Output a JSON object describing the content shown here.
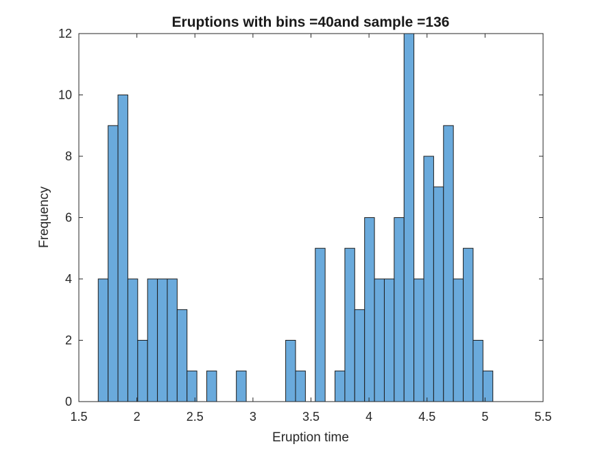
{
  "chart_data": {
    "type": "bar",
    "title": "Eruptions with bins =40and sample =136",
    "xlabel": "Eruption time",
    "ylabel": "Frequency",
    "xlim": [
      1.5,
      5.5
    ],
    "ylim": [
      0,
      12
    ],
    "xticks": [
      "1.5",
      "2",
      "2.5",
      "3",
      "3.5",
      "4",
      "4.5",
      "5",
      "5.5"
    ],
    "yticks": [
      "0",
      "2",
      "4",
      "6",
      "8",
      "10",
      "12"
    ],
    "bin_start": 1.667,
    "bin_width": 0.085,
    "values": [
      4,
      9,
      10,
      4,
      2,
      4,
      4,
      4,
      3,
      1,
      0,
      1,
      0,
      0,
      1,
      0,
      0,
      0,
      0,
      2,
      1,
      0,
      5,
      0,
      1,
      5,
      3,
      6,
      4,
      4,
      6,
      12,
      4,
      8,
      7,
      9,
      4,
      5,
      2,
      1
    ],
    "grid": false,
    "colors": {
      "bar_fill": "#6aaadc",
      "bar_edge": "#1b1b1b",
      "axes": "#262626",
      "text": "#262626",
      "background": "#ffffff"
    }
  }
}
